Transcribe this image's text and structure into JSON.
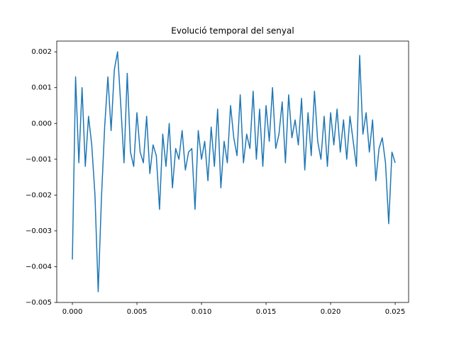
{
  "chart_data": {
    "type": "line",
    "title": "Evolució temporal del senyal",
    "x": [
      0,
      0.00025,
      0.0005,
      0.00075,
      0.001,
      0.00125,
      0.0015,
      0.00175,
      0.002,
      0.00225,
      0.0025,
      0.00275,
      0.003,
      0.00325,
      0.0035,
      0.00375,
      0.004,
      0.00425,
      0.0045,
      0.00475,
      0.005,
      0.00525,
      0.0055,
      0.00575,
      0.006,
      0.00625,
      0.0065,
      0.00675,
      0.007,
      0.00725,
      0.0075,
      0.00775,
      0.008,
      0.00825,
      0.0085,
      0.00875,
      0.009,
      0.00925,
      0.0095,
      0.00975,
      0.01,
      0.01025,
      0.0105,
      0.01075,
      0.011,
      0.01125,
      0.0115,
      0.01175,
      0.012,
      0.01225,
      0.0125,
      0.01275,
      0.013,
      0.01325,
      0.0135,
      0.01375,
      0.014,
      0.01425,
      0.0145,
      0.01475,
      0.015,
      0.01525,
      0.0155,
      0.01575,
      0.016,
      0.01625,
      0.0165,
      0.01675,
      0.017,
      0.01725,
      0.0175,
      0.01775,
      0.018,
      0.01825,
      0.0185,
      0.01875,
      0.019,
      0.01925,
      0.0195,
      0.01975,
      0.02,
      0.02025,
      0.0205,
      0.02075,
      0.021,
      0.02125,
      0.0215,
      0.02175,
      0.022,
      0.02225,
      0.0225,
      0.02275,
      0.023,
      0.02325,
      0.0235,
      0.02375,
      0.024,
      0.02425,
      0.0245,
      0.02475,
      0.025
    ],
    "series": [
      {
        "color": "#1f77b4",
        "values": [
          -0.0038,
          0.0013,
          -0.0011,
          0.001,
          -0.0012,
          0.0002,
          -0.0006,
          -0.002,
          -0.0047,
          -0.0021,
          -0.0001,
          0.0013,
          -0.0002,
          0.0015,
          0.002,
          0.0005,
          -0.0011,
          0.0014,
          -0.0008,
          -0.0012,
          0.0003,
          -0.0008,
          -0.0011,
          0.0002,
          -0.0014,
          -0.0006,
          -0.0009,
          -0.0024,
          -0.0003,
          -0.0012,
          0.0,
          -0.0018,
          -0.0007,
          -0.001,
          -0.0002,
          -0.0013,
          -0.0008,
          -0.0007,
          -0.0024,
          -0.0002,
          -0.001,
          -0.0005,
          -0.0016,
          -0.0001,
          -0.0012,
          0.0004,
          -0.0018,
          -0.0005,
          -0.0011,
          0.0005,
          -0.0004,
          -0.0009,
          0.0008,
          -0.0011,
          -0.0003,
          -0.0007,
          0.0009,
          -0.001,
          0.0004,
          -0.0012,
          0.0005,
          -0.0005,
          0.001,
          -0.0007,
          -0.0003,
          0.0006,
          -0.0011,
          0.0008,
          -0.0004,
          0.0001,
          -0.0006,
          0.0007,
          -0.0013,
          0.0003,
          -0.0009,
          0.0009,
          -0.0005,
          -0.001,
          0.0002,
          -0.0012,
          0.0003,
          -0.0006,
          0.0004,
          -0.0008,
          0.0001,
          -0.001,
          0.0002,
          -0.0005,
          -0.0012,
          0.0019,
          -0.0003,
          0.0003,
          -0.0008,
          0.0001,
          -0.0016,
          -0.0007,
          -0.0004,
          -0.0011,
          -0.0028,
          -0.0008,
          -0.0011
        ]
      }
    ],
    "xlim": [
      -0.00121,
      0.02604
    ],
    "ylim": [
      -0.005,
      0.0023
    ],
    "xticks": [
      {
        "value": 0,
        "label": "0.000"
      },
      0.005,
      {
        "value": 0.01,
        "label": "0.010"
      },
      0.015,
      {
        "value": 0.02,
        "label": "0.020"
      },
      0.025
    ],
    "yticks": [
      {
        "value": -0.005,
        "label": "−0.005"
      },
      {
        "value": -0.004,
        "label": "−0.004"
      },
      {
        "value": -0.003,
        "label": "−0.003"
      },
      {
        "value": -0.002,
        "label": "−0.002"
      },
      {
        "value": -0.001,
        "label": "−0.001"
      },
      {
        "value": 0,
        "label": "0.000"
      },
      0.001,
      0.002
    ],
    "grid": false
  }
}
